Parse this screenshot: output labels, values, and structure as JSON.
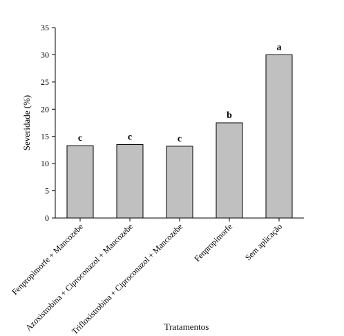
{
  "chart_data": {
    "type": "bar",
    "title": "",
    "xlabel": "Tratamentos",
    "ylabel": "Severidade (%)",
    "ylim": [
      0,
      35
    ],
    "yticks": [
      0,
      5,
      10,
      15,
      20,
      25,
      30,
      35
    ],
    "grid": false,
    "categories": [
      "Fenpropimorfe + Mancozebe",
      "Azoxistrobina + Ciproconazol + Mancozebe",
      "Trifloxistrobina + Ciproconazol + Mancozebe",
      "Fenpropimorfe",
      "Sem aplicação"
    ],
    "values": [
      13.3,
      13.5,
      13.2,
      17.5,
      30.0
    ],
    "significance_labels": [
      "c",
      "c",
      "c",
      "b",
      "a"
    ],
    "bar_color": "#c0c0c0",
    "bar_edge_color": "#000000"
  }
}
